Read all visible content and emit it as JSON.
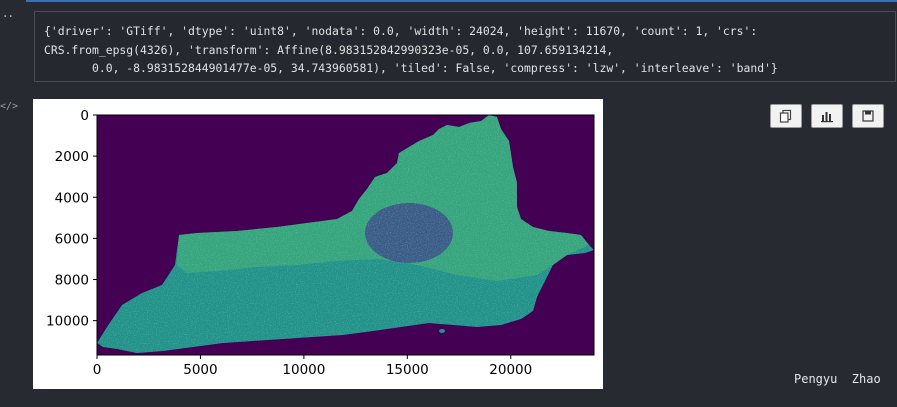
{
  "cell": {
    "prompt_dots": "..",
    "code_icon": "</>"
  },
  "output": {
    "line1": "{'driver': 'GTiff', 'dtype': 'uint8', 'nodata': 0.0, 'width': 24024, 'height': 11670, 'count': 1, 'crs':",
    "line2": "CRS.from_epsg(4326), 'transform': Affine(8.983152842990323e-05, 0.0, 107.659134214,",
    "line3": "       0.0, -8.983152844901477e-05, 34.743960581), 'tiled': False, 'compress': 'lzw', 'interleave': 'band'}"
  },
  "toolbar": {
    "buttons": [
      {
        "name": "copy",
        "icon": "copy-icon"
      },
      {
        "name": "chart",
        "icon": "bar-chart-icon"
      },
      {
        "name": "save",
        "icon": "save-icon"
      }
    ]
  },
  "author": "Pengyu  Zhao",
  "chart_data": {
    "type": "heatmap",
    "title": "",
    "xlabel": "",
    "ylabel": "",
    "xlim": [
      0,
      24024
    ],
    "ylim": [
      11670,
      0
    ],
    "x_ticks": [
      0,
      5000,
      10000,
      15000,
      20000
    ],
    "y_ticks": [
      0,
      2000,
      4000,
      6000,
      8000,
      10000
    ],
    "colormap": "viridis",
    "background_color": "#440154",
    "colors": [
      "#440154",
      "#3b528b",
      "#21918c",
      "#5ec962",
      "#fde725"
    ]
  }
}
